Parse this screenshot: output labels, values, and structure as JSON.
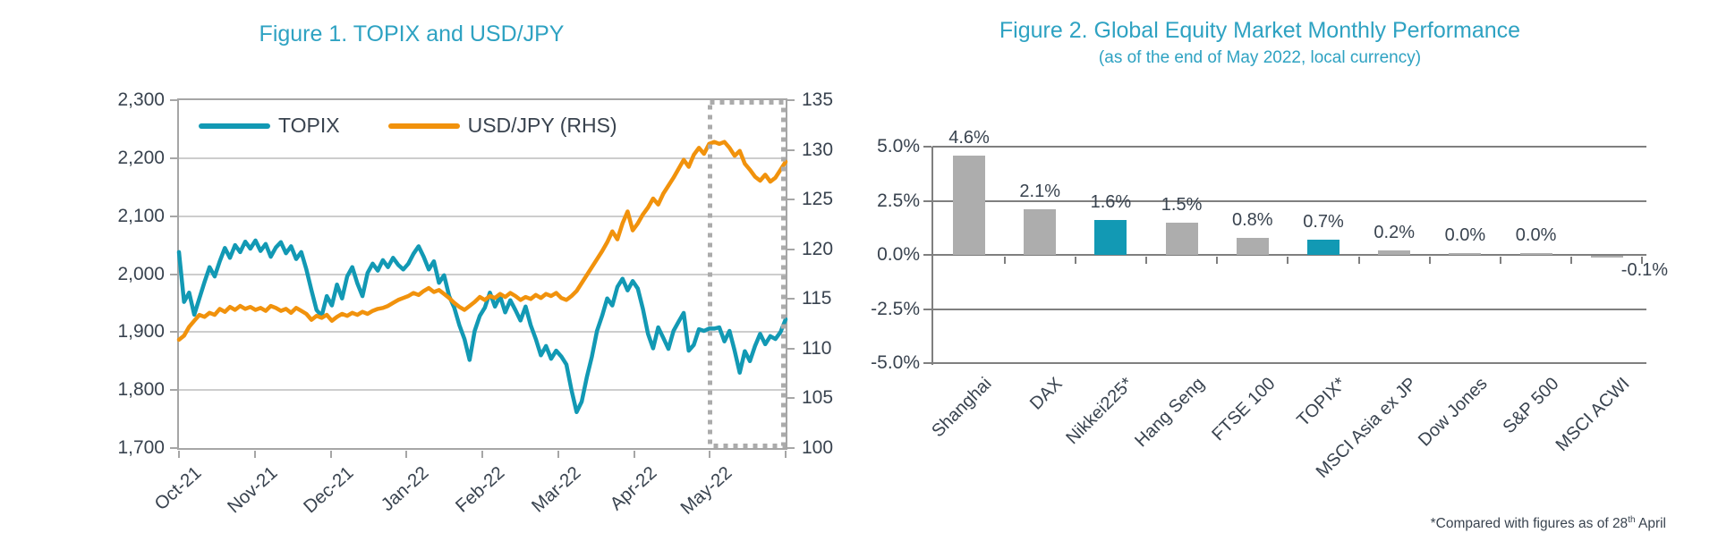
{
  "colors": {
    "teal": "#1299B4",
    "orange": "#F1920C",
    "bar_gray": "#ADADAD",
    "grid_light": "#CDCDCD",
    "grid_dark": "#7F7F7F",
    "axis_gray": "#A6A6A6",
    "text_dark": "#39434F",
    "title_teal": "#2EA2C2"
  },
  "chart_data": [
    {
      "type": "line",
      "title": "Figure 1. TOPIX and USD/JPY",
      "x_labels": [
        "Oct-21",
        "Nov-21",
        "Dec-21",
        "Jan-22",
        "Feb-22",
        "Mar-22",
        "Apr-22",
        "May-22"
      ],
      "left_axis": {
        "min": 1700,
        "max": 2300,
        "tick_labels": [
          "2,300",
          "2,200",
          "2,100",
          "2,000",
          "1,900",
          "1,800",
          "1,700"
        ]
      },
      "right_axis": {
        "min": 100,
        "max": 135,
        "tick_labels": [
          "135",
          "130",
          "125",
          "120",
          "115",
          "110",
          "105",
          "100"
        ]
      },
      "highlight_box": {
        "months_covered": "May-22",
        "style": "dotted-gray-rectangle"
      },
      "series": [
        {
          "name": "TOPIX",
          "axis": "left",
          "color": "#1299B4",
          "values": [
            2038,
            1952,
            1968,
            1930,
            1958,
            1986,
            2012,
            1996,
            2022,
            2045,
            2028,
            2050,
            2038,
            2056,
            2044,
            2058,
            2040,
            2052,
            2030,
            2046,
            2055,
            2036,
            2048,
            2026,
            2038,
            2008,
            1972,
            1938,
            1928,
            1962,
            1946,
            1982,
            1958,
            1996,
            2012,
            1984,
            1962,
            2002,
            2018,
            2006,
            2024,
            2012,
            2028,
            2016,
            2008,
            2018,
            2035,
            2048,
            2030,
            2008,
            2022,
            1985,
            1998,
            1962,
            1942,
            1912,
            1888,
            1852,
            1902,
            1928,
            1942,
            1968,
            1944,
            1962,
            1934,
            1955,
            1938,
            1920,
            1944,
            1912,
            1888,
            1860,
            1876,
            1854,
            1868,
            1858,
            1844,
            1800,
            1762,
            1780,
            1822,
            1858,
            1902,
            1928,
            1958,
            1946,
            1978,
            1992,
            1972,
            1988,
            1975,
            1940,
            1897,
            1872,
            1908,
            1890,
            1871,
            1902,
            1918,
            1933,
            1868,
            1878,
            1905,
            1902,
            1906,
            1906,
            1908,
            1884,
            1902,
            1868,
            1830,
            1867,
            1850,
            1876,
            1897,
            1879,
            1893,
            1888,
            1900,
            1922
          ]
        },
        {
          "name": "USD/JPY (RHS)",
          "axis": "right",
          "color": "#F1920C",
          "values": [
            110.9,
            111.3,
            112.2,
            112.8,
            113.4,
            113.2,
            113.6,
            113.4,
            114.0,
            113.7,
            114.2,
            113.9,
            114.3,
            114.0,
            114.2,
            113.9,
            114.1,
            113.8,
            114.3,
            114.1,
            113.8,
            114.0,
            113.6,
            114.1,
            113.8,
            113.5,
            112.9,
            113.3,
            113.1,
            113.4,
            112.8,
            113.2,
            113.5,
            113.3,
            113.6,
            113.4,
            113.7,
            113.5,
            113.8,
            114.0,
            114.1,
            114.3,
            114.6,
            114.9,
            115.1,
            115.3,
            115.6,
            115.4,
            115.8,
            116.1,
            115.7,
            115.9,
            115.5,
            115.1,
            114.6,
            114.2,
            113.9,
            114.3,
            114.7,
            115.2,
            114.9,
            115.3,
            115.1,
            115.5,
            115.2,
            115.6,
            115.3,
            114.9,
            115.2,
            115.0,
            115.4,
            115.1,
            115.5,
            115.3,
            115.6,
            115.1,
            114.9,
            115.3,
            115.8,
            116.6,
            117.4,
            118.2,
            119.0,
            119.8,
            120.7,
            121.8,
            121.0,
            122.6,
            123.8,
            121.9,
            122.6,
            123.5,
            124.2,
            125.1,
            124.5,
            125.6,
            126.4,
            127.2,
            128.1,
            129.0,
            128.3,
            129.5,
            130.2,
            129.6,
            130.6,
            130.8,
            130.6,
            130.8,
            130.2,
            129.4,
            129.9,
            128.6,
            128.0,
            127.3,
            126.9,
            127.5,
            126.8,
            127.2,
            128.0,
            128.8
          ]
        }
      ]
    },
    {
      "type": "bar",
      "title": "Figure 2. Global Equity Market Monthly Performance",
      "subtitle": "(as of the end of May 2022, local currency)",
      "categories": [
        "Shanghai",
        "DAX",
        "Nikkei225*",
        "Hang Seng",
        "FTSE 100",
        "TOPIX*",
        "MSCI Asia ex JP",
        "Dow Jones",
        "S&P 500",
        "MSCI ACWI"
      ],
      "values": [
        4.6,
        2.1,
        1.6,
        1.5,
        0.8,
        0.7,
        0.2,
        0.0,
        0.0,
        -0.1
      ],
      "value_labels": [
        "4.6%",
        "2.1%",
        "1.6%",
        "1.5%",
        "0.8%",
        "0.7%",
        "0.2%",
        "0.0%",
        "0.0%",
        "-0.1%"
      ],
      "bar_colors": [
        "gray",
        "gray",
        "teal",
        "gray",
        "gray",
        "teal",
        "gray",
        "gray",
        "gray",
        "gray"
      ],
      "y_tick_labels": [
        "5.0%",
        "2.5%",
        "0.0%",
        "-2.5%",
        "-5.0%"
      ],
      "ylim": [
        -5.0,
        5.0
      ],
      "grid": "horizontal",
      "footnote": {
        "prefix": "*Compared with figures as of 28",
        "sup": "th",
        "suffix": " April"
      }
    }
  ]
}
